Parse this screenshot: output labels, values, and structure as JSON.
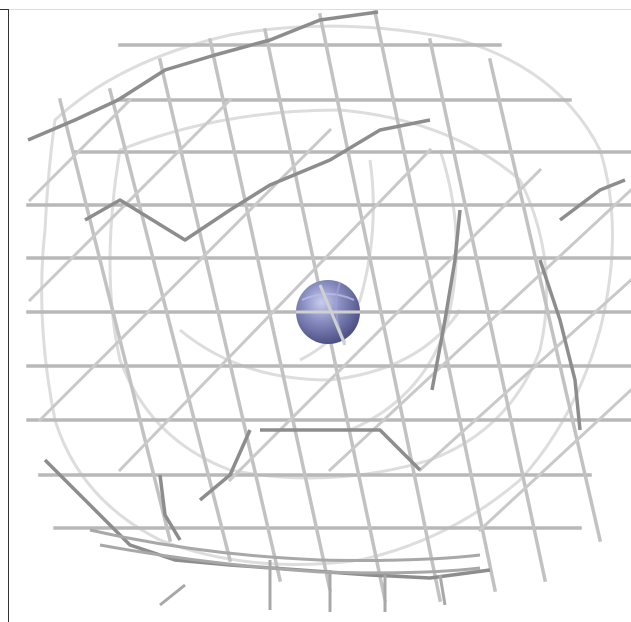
{
  "scene": {
    "subject": "wireframe-mesh-with-central-sphere",
    "colors": {
      "background": "#ffffff",
      "mesh_light": "#d9d9d9",
      "mesh_mid": "#b5b5b5",
      "mesh_dark": "#6e6e6e",
      "sphere": "#7a7fb3",
      "sphere_highlight": "#c9ccef"
    }
  }
}
